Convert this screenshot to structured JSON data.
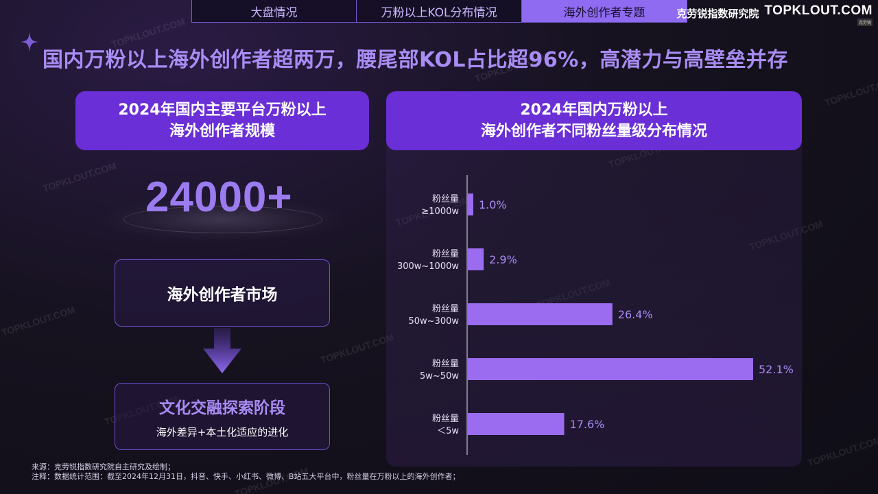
{
  "tabs": [
    {
      "label": "大盘情况",
      "active": false
    },
    {
      "label": "万粉以上KOL分布情况",
      "active": false
    },
    {
      "label": "海外创作者专题",
      "active": true
    }
  ],
  "brand": {
    "name_cn": "克劳锐指数研究院",
    "logo_text": "TOPKLOUT.COM",
    "logo_sub": "克劳锐"
  },
  "title": "国内万粉以上海外创作者超两万，腰尾部KOL占比超96%，高潜力与高壁垒并存",
  "left_panel": {
    "heading_line1": "2024年国内主要平台万粉以上",
    "heading_line2": "海外创作者规模",
    "big_number": "24000+",
    "box1_title": "海外创作者市场",
    "box2_title": "文化交融探索阶段",
    "box2_subtitle": "海外差异+本土化适应的进化"
  },
  "right_panel": {
    "heading_line1": "2024年国内万粉以上",
    "heading_line2": "海外创作者不同粉丝量级分布情况"
  },
  "chart_data": {
    "type": "bar",
    "orientation": "horizontal",
    "categories": [
      [
        "粉丝量",
        "≥1000w"
      ],
      [
        "粉丝量",
        "300w~1000w"
      ],
      [
        "粉丝量",
        "50w~300w"
      ],
      [
        "粉丝量",
        "5w~50w"
      ],
      [
        "粉丝量",
        "＜5w"
      ]
    ],
    "values": [
      1.0,
      2.9,
      26.4,
      52.1,
      17.6
    ],
    "value_labels": [
      "1.0%",
      "2.9%",
      "26.4%",
      "52.1%",
      "17.6%"
    ],
    "unit": "%",
    "xlim": [
      0,
      52.1
    ],
    "bar_color": "#9b6cf0",
    "label_color": "#a98cf4"
  },
  "footnotes": {
    "source": "来源：克劳锐指数研究院自主研究及绘制；",
    "note": "注释：数据统计范围：截至2024年12月31日，抖音、快手、小红书、微博、B站五大平台中，粉丝量在万粉以上的海外创作者；"
  },
  "watermark": "TOPKLOUT.COM",
  "colors": {
    "accent": "#6a2fd6",
    "title": "#a98cf4",
    "bar": "#9b6cf0"
  }
}
